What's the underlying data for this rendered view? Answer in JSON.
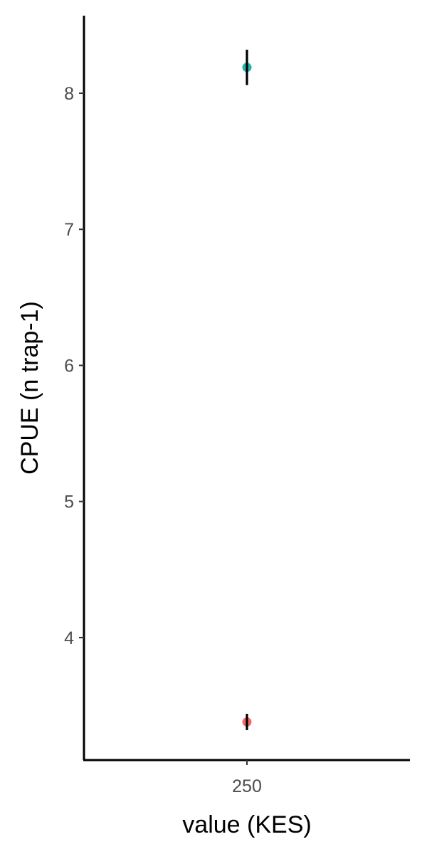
{
  "chart_data": {
    "type": "scatter",
    "title": "",
    "xlabel": "value (KES)",
    "ylabel": "CPUE (n trap-1)",
    "categories": [
      "250"
    ],
    "ylim": [
      3.1,
      8.57
    ],
    "y_ticks": [
      4,
      5,
      6,
      7,
      8
    ],
    "grid": false,
    "legend": "none",
    "points": [
      {
        "category": "250",
        "y": 8.19,
        "y_low": 8.06,
        "y_high": 8.32,
        "color": "#1fb5ac"
      },
      {
        "category": "250",
        "y": 3.38,
        "y_low": 3.32,
        "y_high": 3.44,
        "color": "#ef6b63"
      }
    ],
    "axis_color": "#000000",
    "errorbar_color": "#000000"
  }
}
